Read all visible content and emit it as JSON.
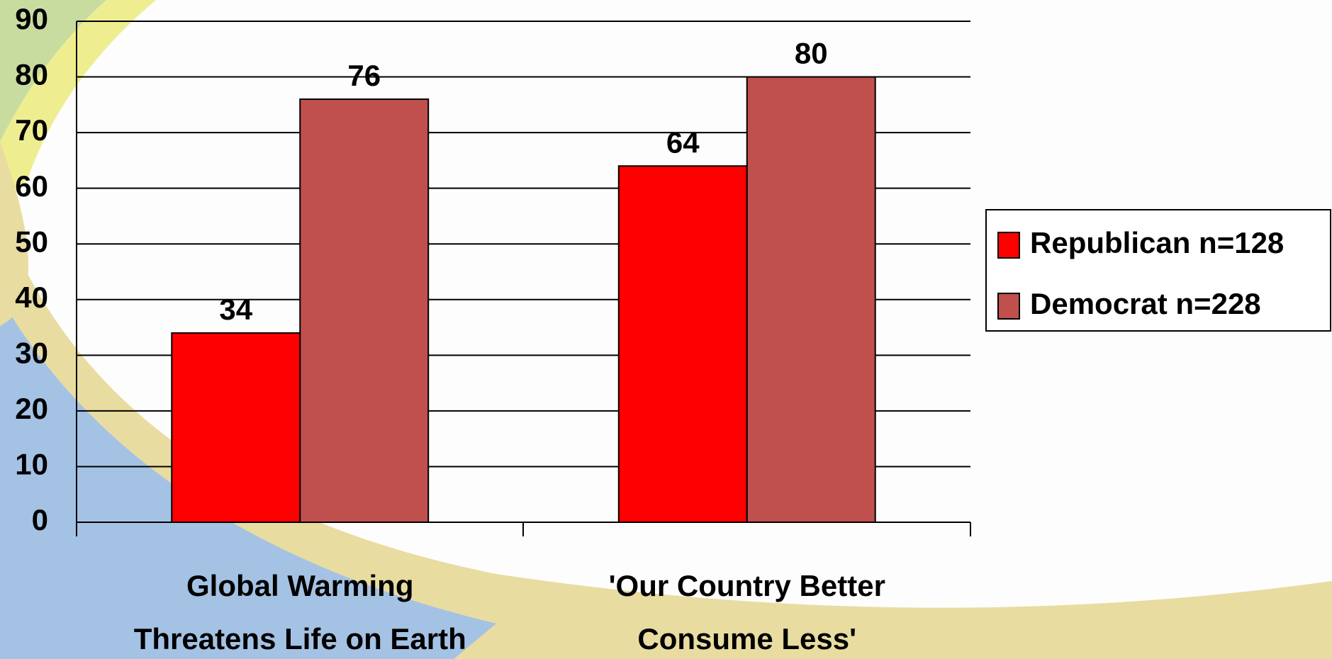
{
  "chart_data": {
    "type": "bar",
    "categories": [
      "Global Warming\nThreatens Life on Earth",
      "'Our Country Better\nConsume Less'"
    ],
    "series": [
      {
        "name": "Republican n=128",
        "color": "#ff0000",
        "values": [
          34,
          64
        ]
      },
      {
        "name": "Democrat n=228",
        "color": "#c0504d",
        "values": [
          76,
          80
        ]
      }
    ],
    "ylim": [
      0,
      90
    ],
    "yticks": [
      0,
      10,
      20,
      30,
      40,
      50,
      60,
      70,
      80,
      90
    ],
    "grid": true,
    "legend": "right"
  }
}
